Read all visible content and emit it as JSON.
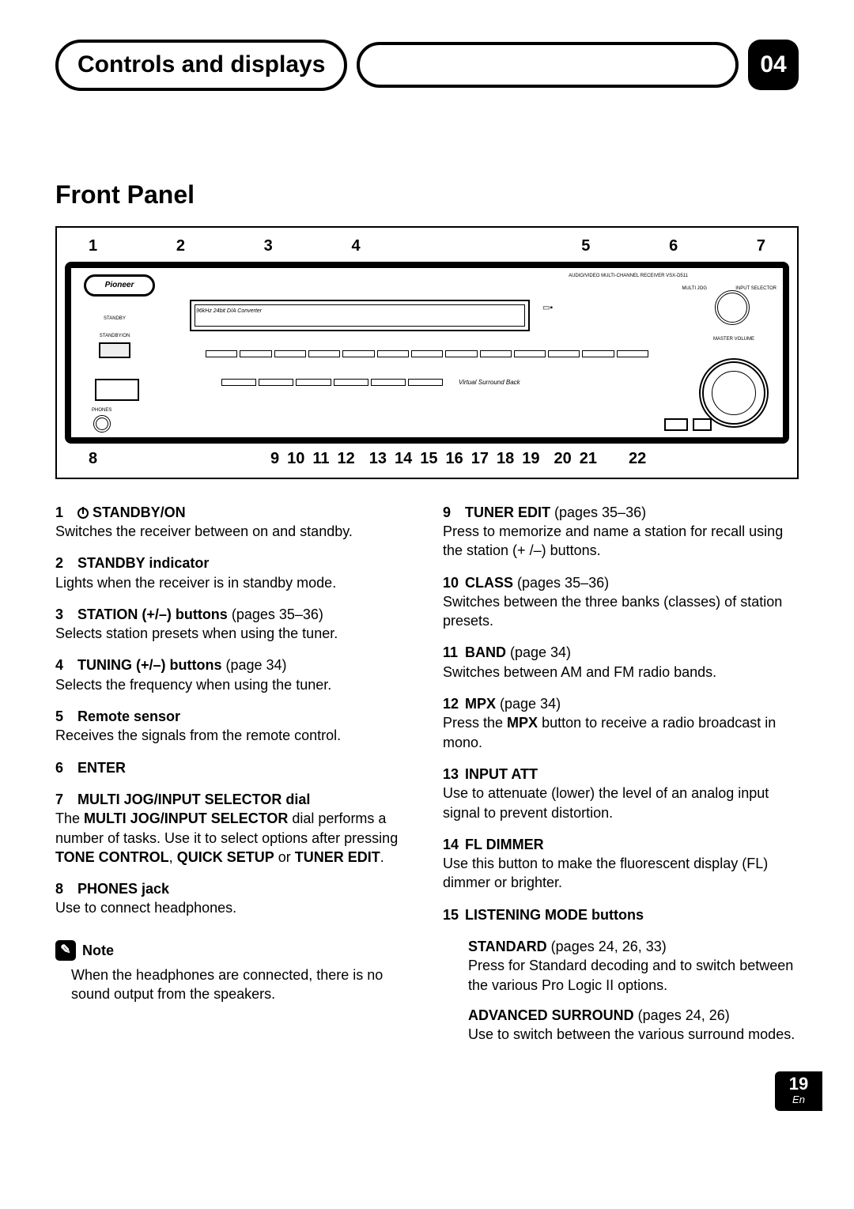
{
  "header": {
    "title": "Controls and displays",
    "chapter": "04"
  },
  "section_title": "Front Panel",
  "diagram": {
    "top_numbers": [
      "1",
      "2",
      "3",
      "4",
      "5",
      "6",
      "7"
    ],
    "bottom_left": "8",
    "bottom_mid": [
      "9",
      "10",
      "11",
      "12",
      "13",
      "14",
      "15",
      "16",
      "17",
      "18",
      "19",
      "20",
      "21"
    ],
    "bottom_right": "22",
    "brand": "Pioneer",
    "conv_label": "96kHz 24bit D/A Converter",
    "standby_label": "STANDBY",
    "standby_on_label": "STANDBY/ON",
    "phones_label": "PHONES",
    "model_label": "AUDIO/VIDEO MULTI-CHANNEL RECEIVER  VSX-D511",
    "multijog_label": "MULTI JOG",
    "input_sel_label": "INPUT SELECTOR",
    "master_vol_label": "MASTER VOLUME",
    "vsb_label": "Virtual Surround Back"
  },
  "left_items": [
    {
      "num": "1",
      "title_prefix_icon": true,
      "title": "STANDBY/ON",
      "title_suffix": "",
      "desc": "Switches the receiver between on and standby."
    },
    {
      "num": "2",
      "title": "STANDBY indicator",
      "desc": "Lights when the receiver is in standby mode."
    },
    {
      "num": "3",
      "title": "STATION (+/–) buttons",
      "title_suffix": " (pages 35–36)",
      "desc": "Selects station presets when using the tuner."
    },
    {
      "num": "4",
      "title": "TUNING (+/–) buttons",
      "title_suffix": " (page 34)",
      "desc": "Selects the frequency when using the tuner."
    },
    {
      "num": "5",
      "title": "Remote sensor",
      "desc": "Receives the signals from the remote control."
    },
    {
      "num": "6",
      "title": "ENTER",
      "desc": ""
    },
    {
      "num": "7",
      "title": "MULTI JOG/INPUT SELECTOR dial",
      "desc_html": "The <b>MULTI JOG/INPUT SELECTOR</b> dial performs a number of tasks. Use it to select options after pressing <b>TONE CONTROL</b>, <b>QUICK SETUP</b> or <b>TUNER EDIT</b>."
    },
    {
      "num": "8",
      "title": "PHONES jack",
      "desc": "Use to connect headphones."
    }
  ],
  "note": {
    "label": "Note",
    "text": "When the headphones are connected, there is no sound output from the speakers."
  },
  "right_items": [
    {
      "num": "9",
      "title": "TUNER EDIT",
      "title_suffix": " (pages 35–36)",
      "desc": "Press to memorize and name a station for recall using the station (+ /–) buttons."
    },
    {
      "num": "10",
      "title": "CLASS",
      "title_suffix": " (pages 35–36)",
      "desc": "Switches between the three banks (classes) of station presets."
    },
    {
      "num": "11",
      "title": "BAND",
      "title_suffix": " (page 34)",
      "desc": "Switches between AM and FM radio bands."
    },
    {
      "num": "12",
      "title": "MPX",
      "title_suffix": " (page 34)",
      "desc_html": "Press the <b>MPX</b> button to receive a radio broadcast in mono."
    },
    {
      "num": "13",
      "title": "INPUT ATT",
      "desc": "Use to attenuate (lower) the level of an analog input signal to prevent distortion."
    },
    {
      "num": "14",
      "title": "FL DIMMER",
      "desc": "Use this button to make the fluorescent display (FL) dimmer or brighter."
    },
    {
      "num": "15",
      "title": "LISTENING MODE buttons",
      "desc": ""
    }
  ],
  "listening_sub": [
    {
      "title": "STANDARD",
      "title_suffix": " (pages 24, 26, 33)",
      "desc": "Press for Standard decoding and to switch between the various Pro Logic II options."
    },
    {
      "title": "ADVANCED SURROUND",
      "title_suffix": " (pages 24, 26)",
      "desc": "Use to switch between the various surround modes."
    }
  ],
  "page": {
    "number": "19",
    "lang": "En"
  }
}
